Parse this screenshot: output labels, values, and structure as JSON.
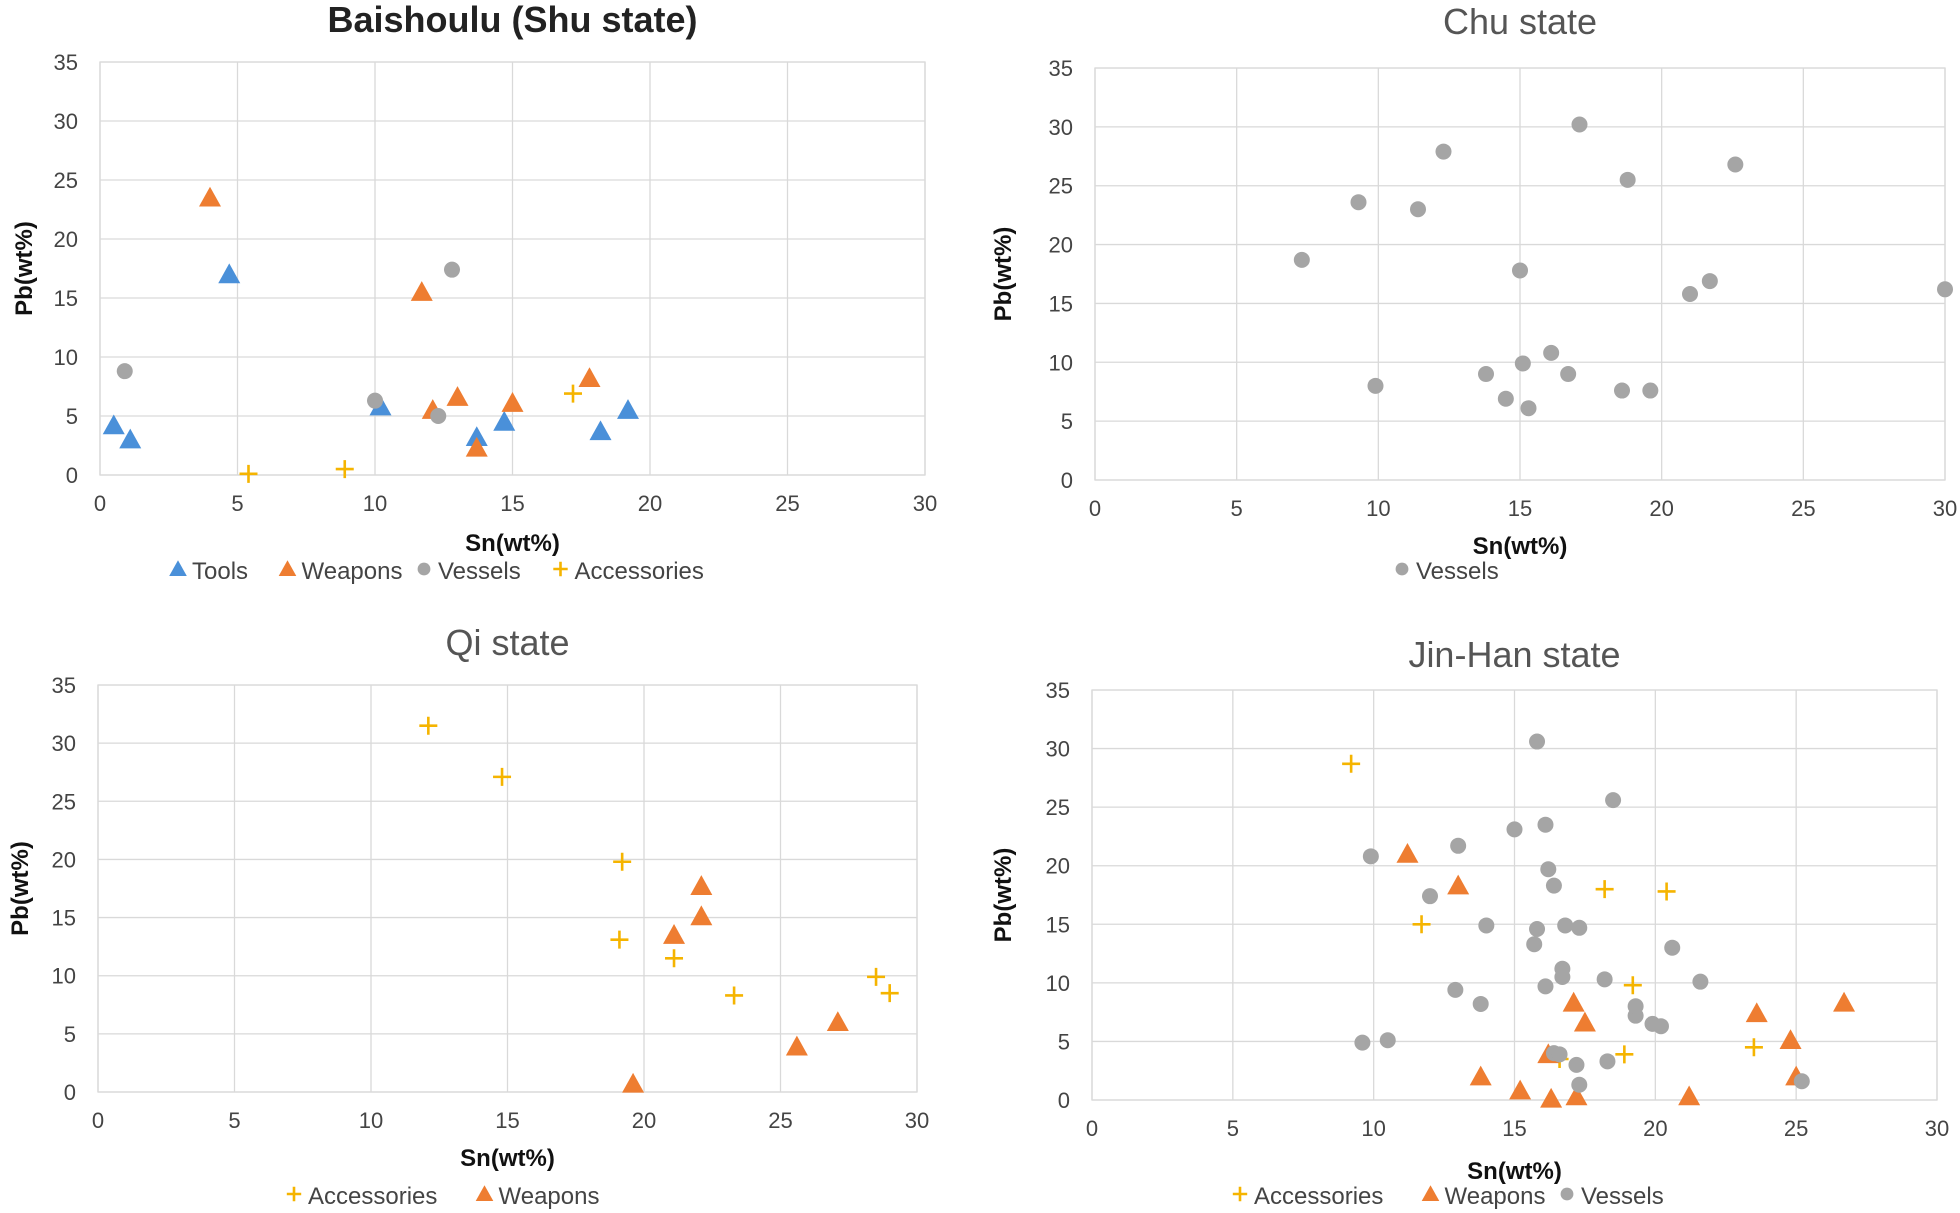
{
  "colors": {
    "Tools": "#4a90d9",
    "Weapons": "#ee7d31",
    "Vessels": "#a5a5a5",
    "Accessories": "#f5b400"
  },
  "markers": {
    "Tools": "triangle",
    "Weapons": "triangle",
    "Vessels": "circle",
    "Accessories": "plus"
  },
  "chart_data": [
    {
      "type": "scatter",
      "title": "Baishoulu (Shu state)",
      "title_bold": true,
      "xlabel": "Sn(wt%)",
      "ylabel": "Pb(wt%)",
      "xlim": [
        0,
        30
      ],
      "ylim": [
        0,
        35
      ],
      "xticks": [
        0,
        5,
        10,
        15,
        20,
        25,
        30
      ],
      "yticks": [
        0,
        5,
        10,
        15,
        20,
        25,
        30,
        35
      ],
      "legend": [
        "Tools",
        "Weapons",
        "Vessels",
        "Accessories"
      ],
      "series": [
        {
          "name": "Tools",
          "points": [
            [
              0.5,
              4.2
            ],
            [
              1.1,
              3.0
            ],
            [
              4.7,
              17.0
            ],
            [
              10.2,
              5.8
            ],
            [
              13.7,
              3.2
            ],
            [
              14.7,
              4.5
            ],
            [
              18.2,
              3.7
            ],
            [
              19.2,
              5.5
            ]
          ]
        },
        {
          "name": "Weapons",
          "points": [
            [
              4.0,
              23.5
            ],
            [
              11.7,
              15.5
            ],
            [
              12.1,
              5.5
            ],
            [
              13.0,
              6.6
            ],
            [
              13.7,
              2.3
            ],
            [
              15.0,
              6.1
            ],
            [
              17.8,
              8.2
            ]
          ]
        },
        {
          "name": "Vessels",
          "points": [
            [
              0.9,
              8.8
            ],
            [
              10.0,
              6.3
            ],
            [
              12.3,
              5.0
            ],
            [
              12.8,
              17.4
            ]
          ]
        },
        {
          "name": "Accessories",
          "points": [
            [
              5.4,
              0.1
            ],
            [
              8.9,
              0.5
            ],
            [
              17.2,
              6.9
            ]
          ]
        }
      ]
    },
    {
      "type": "scatter",
      "title": "Chu state",
      "title_bold": false,
      "xlabel": "Sn(wt%)",
      "ylabel": "Pb(wt%)",
      "xlim": [
        0,
        30
      ],
      "ylim": [
        0,
        35
      ],
      "xticks": [
        0,
        5,
        10,
        15,
        20,
        25,
        30
      ],
      "yticks": [
        0,
        5,
        10,
        15,
        20,
        25,
        30,
        35
      ],
      "legend": [
        "Vessels"
      ],
      "series": [
        {
          "name": "Vessels",
          "points": [
            [
              7.3,
              18.7
            ],
            [
              9.3,
              23.6
            ],
            [
              9.9,
              8.0
            ],
            [
              11.4,
              23.0
            ],
            [
              12.3,
              27.9
            ],
            [
              13.8,
              9.0
            ],
            [
              14.5,
              6.9
            ],
            [
              15.0,
              17.8
            ],
            [
              15.1,
              9.9
            ],
            [
              15.3,
              6.1
            ],
            [
              16.1,
              10.8
            ],
            [
              16.7,
              9.0
            ],
            [
              17.1,
              30.2
            ],
            [
              18.6,
              7.6
            ],
            [
              18.8,
              25.5
            ],
            [
              19.6,
              7.6
            ],
            [
              21.0,
              15.8
            ],
            [
              21.7,
              16.9
            ],
            [
              22.6,
              26.8
            ],
            [
              30.0,
              16.2
            ]
          ]
        }
      ]
    },
    {
      "type": "scatter",
      "title": "Qi state",
      "title_bold": false,
      "xlabel": "Sn(wt%)",
      "ylabel": "Pb(wt%)",
      "xlim": [
        0,
        30
      ],
      "ylim": [
        0,
        35
      ],
      "xticks": [
        0,
        5,
        10,
        15,
        20,
        25,
        30
      ],
      "yticks": [
        0,
        5,
        10,
        15,
        20,
        25,
        30,
        35
      ],
      "legend": [
        "Accessories",
        "Weapons"
      ],
      "series": [
        {
          "name": "Accessories",
          "points": [
            [
              12.1,
              31.5
            ],
            [
              14.8,
              27.1
            ],
            [
              19.1,
              13.1
            ],
            [
              19.2,
              19.8
            ],
            [
              21.1,
              11.5
            ],
            [
              23.3,
              8.3
            ],
            [
              28.5,
              9.9
            ],
            [
              29.0,
              8.5
            ]
          ]
        },
        {
          "name": "Weapons",
          "points": [
            [
              19.6,
              0.7
            ],
            [
              21.1,
              13.5
            ],
            [
              22.1,
              15.1
            ],
            [
              22.1,
              17.7
            ],
            [
              25.6,
              3.9
            ],
            [
              27.1,
              6.0
            ]
          ]
        }
      ]
    },
    {
      "type": "scatter",
      "title": "Jin-Han state",
      "title_bold": false,
      "xlabel": "Sn(wt%)",
      "ylabel": "Pb(wt%)",
      "xlim": [
        0,
        30
      ],
      "ylim": [
        0,
        35
      ],
      "xticks": [
        0,
        5,
        10,
        15,
        20,
        25,
        30
      ],
      "yticks": [
        0,
        5,
        10,
        15,
        20,
        25,
        30,
        35
      ],
      "legend": [
        "Accessories",
        "Weapons",
        "Vessels"
      ],
      "series": [
        {
          "name": "Accessories",
          "points": [
            [
              9.2,
              28.7
            ],
            [
              11.7,
              15.0
            ],
            [
              16.6,
              3.5
            ],
            [
              18.2,
              18.0
            ],
            [
              18.9,
              3.9
            ],
            [
              19.2,
              9.8
            ],
            [
              20.4,
              17.8
            ],
            [
              23.5,
              4.5
            ]
          ]
        },
        {
          "name": "Weapons",
          "points": [
            [
              11.2,
              21.0
            ],
            [
              13.0,
              18.3
            ],
            [
              13.8,
              2.0
            ],
            [
              15.2,
              0.8
            ],
            [
              16.2,
              3.9
            ],
            [
              16.3,
              0.1
            ],
            [
              17.1,
              8.3
            ],
            [
              17.2,
              0.3
            ],
            [
              17.5,
              6.6
            ],
            [
              21.2,
              0.3
            ],
            [
              23.6,
              7.4
            ],
            [
              24.8,
              5.1
            ],
            [
              25.0,
              2.0
            ],
            [
              26.7,
              8.3
            ]
          ]
        },
        {
          "name": "Vessels",
          "points": [
            [
              9.6,
              4.9
            ],
            [
              9.9,
              20.8
            ],
            [
              10.5,
              5.1
            ],
            [
              12.9,
              9.4
            ],
            [
              13.0,
              21.7
            ],
            [
              12.0,
              17.4
            ],
            [
              13.8,
              8.2
            ],
            [
              14.0,
              14.9
            ],
            [
              15.0,
              23.1
            ],
            [
              15.7,
              13.3
            ],
            [
              15.8,
              14.6
            ],
            [
              15.8,
              30.6
            ],
            [
              16.1,
              23.5
            ],
            [
              16.1,
              9.7
            ],
            [
              16.2,
              19.7
            ],
            [
              16.4,
              18.3
            ],
            [
              16.4,
              4.0
            ],
            [
              16.6,
              3.9
            ],
            [
              16.7,
              11.2
            ],
            [
              16.7,
              10.5
            ],
            [
              16.8,
              14.9
            ],
            [
              17.3,
              14.7
            ],
            [
              17.2,
              3.0
            ],
            [
              17.3,
              1.3
            ],
            [
              18.2,
              10.3
            ],
            [
              18.3,
              3.3
            ],
            [
              18.5,
              25.6
            ],
            [
              19.3,
              7.2
            ],
            [
              19.3,
              8.0
            ],
            [
              19.9,
              6.5
            ],
            [
              20.2,
              6.3
            ],
            [
              20.6,
              13.0
            ],
            [
              21.6,
              10.1
            ],
            [
              25.2,
              1.6
            ]
          ]
        }
      ]
    }
  ]
}
